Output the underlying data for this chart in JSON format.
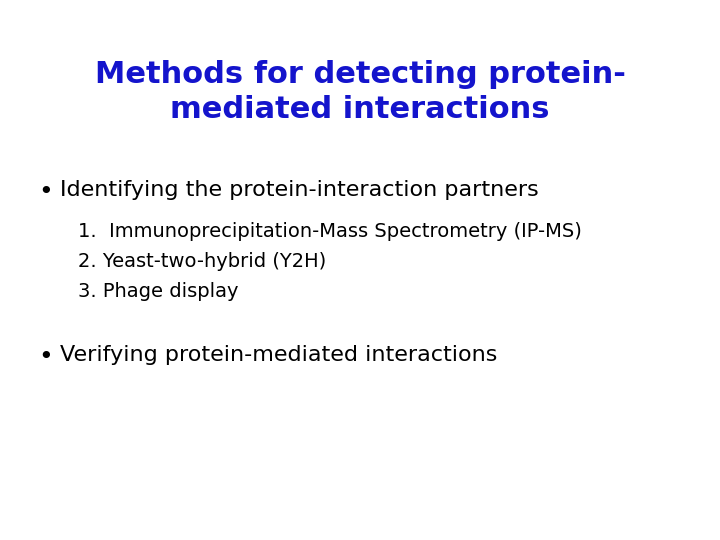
{
  "background_color": "#ffffff",
  "title_line1": "Methods for detecting protein-",
  "title_line2": "mediated interactions",
  "title_color": "#1414cc",
  "title_fontsize": 22,
  "title_bold": true,
  "bullet1_text": "Identifying the protein-interaction partners",
  "bullet1_fontsize": 16,
  "bullet1_color": "#000000",
  "sub_items": [
    "1.  Immunoprecipitation-Mass Spectrometry (IP-MS)",
    "2. Yeast-two-hybrid (Y2H)",
    "3. Phage display"
  ],
  "sub_fontsize": 14,
  "sub_color": "#000000",
  "bullet2_text": "Verifying protein-mediated interactions",
  "bullet2_fontsize": 16,
  "bullet2_color": "#000000",
  "bullet_symbol": "•"
}
